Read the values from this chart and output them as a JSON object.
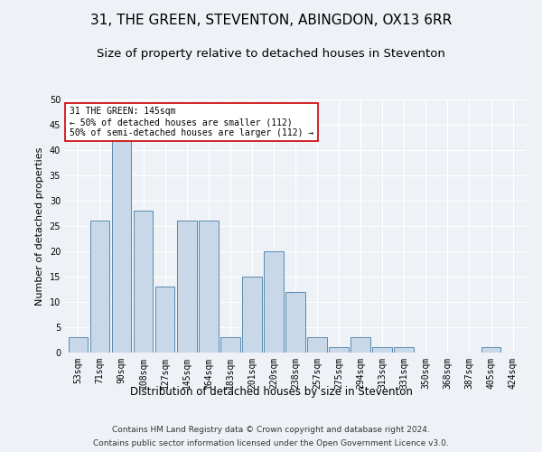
{
  "title": "31, THE GREEN, STEVENTON, ABINGDON, OX13 6RR",
  "subtitle": "Size of property relative to detached houses in Steventon",
  "xlabel": "Distribution of detached houses by size in Steventon",
  "ylabel": "Number of detached properties",
  "categories": [
    "53sqm",
    "71sqm",
    "90sqm",
    "108sqm",
    "127sqm",
    "145sqm",
    "164sqm",
    "183sqm",
    "201sqm",
    "220sqm",
    "238sqm",
    "257sqm",
    "275sqm",
    "294sqm",
    "313sqm",
    "331sqm",
    "350sqm",
    "368sqm",
    "387sqm",
    "405sqm",
    "424sqm"
  ],
  "values": [
    3,
    26,
    42,
    28,
    13,
    26,
    26,
    3,
    15,
    20,
    12,
    3,
    1,
    3,
    1,
    1,
    0,
    0,
    0,
    1,
    0
  ],
  "bar_color": "#c8d8e8",
  "bar_edge_color": "#5a8ab0",
  "ylim": [
    0,
    50
  ],
  "yticks": [
    0,
    5,
    10,
    15,
    20,
    25,
    30,
    35,
    40,
    45,
    50
  ],
  "annotation_box_text": "31 THE GREEN: 145sqm\n← 50% of detached houses are smaller (112)\n50% of semi-detached houses are larger (112) →",
  "annotation_box_color": "#ffffff",
  "annotation_box_edge_color": "#cc0000",
  "footer_line1": "Contains HM Land Registry data © Crown copyright and database right 2024.",
  "footer_line2": "Contains public sector information licensed under the Open Government Licence v3.0.",
  "background_color": "#eef2f7",
  "grid_color": "#ffffff",
  "title_fontsize": 11,
  "subtitle_fontsize": 9.5,
  "ylabel_fontsize": 8,
  "xlabel_fontsize": 8.5,
  "tick_fontsize": 7,
  "annotation_fontsize": 7,
  "footer_fontsize": 6.5
}
